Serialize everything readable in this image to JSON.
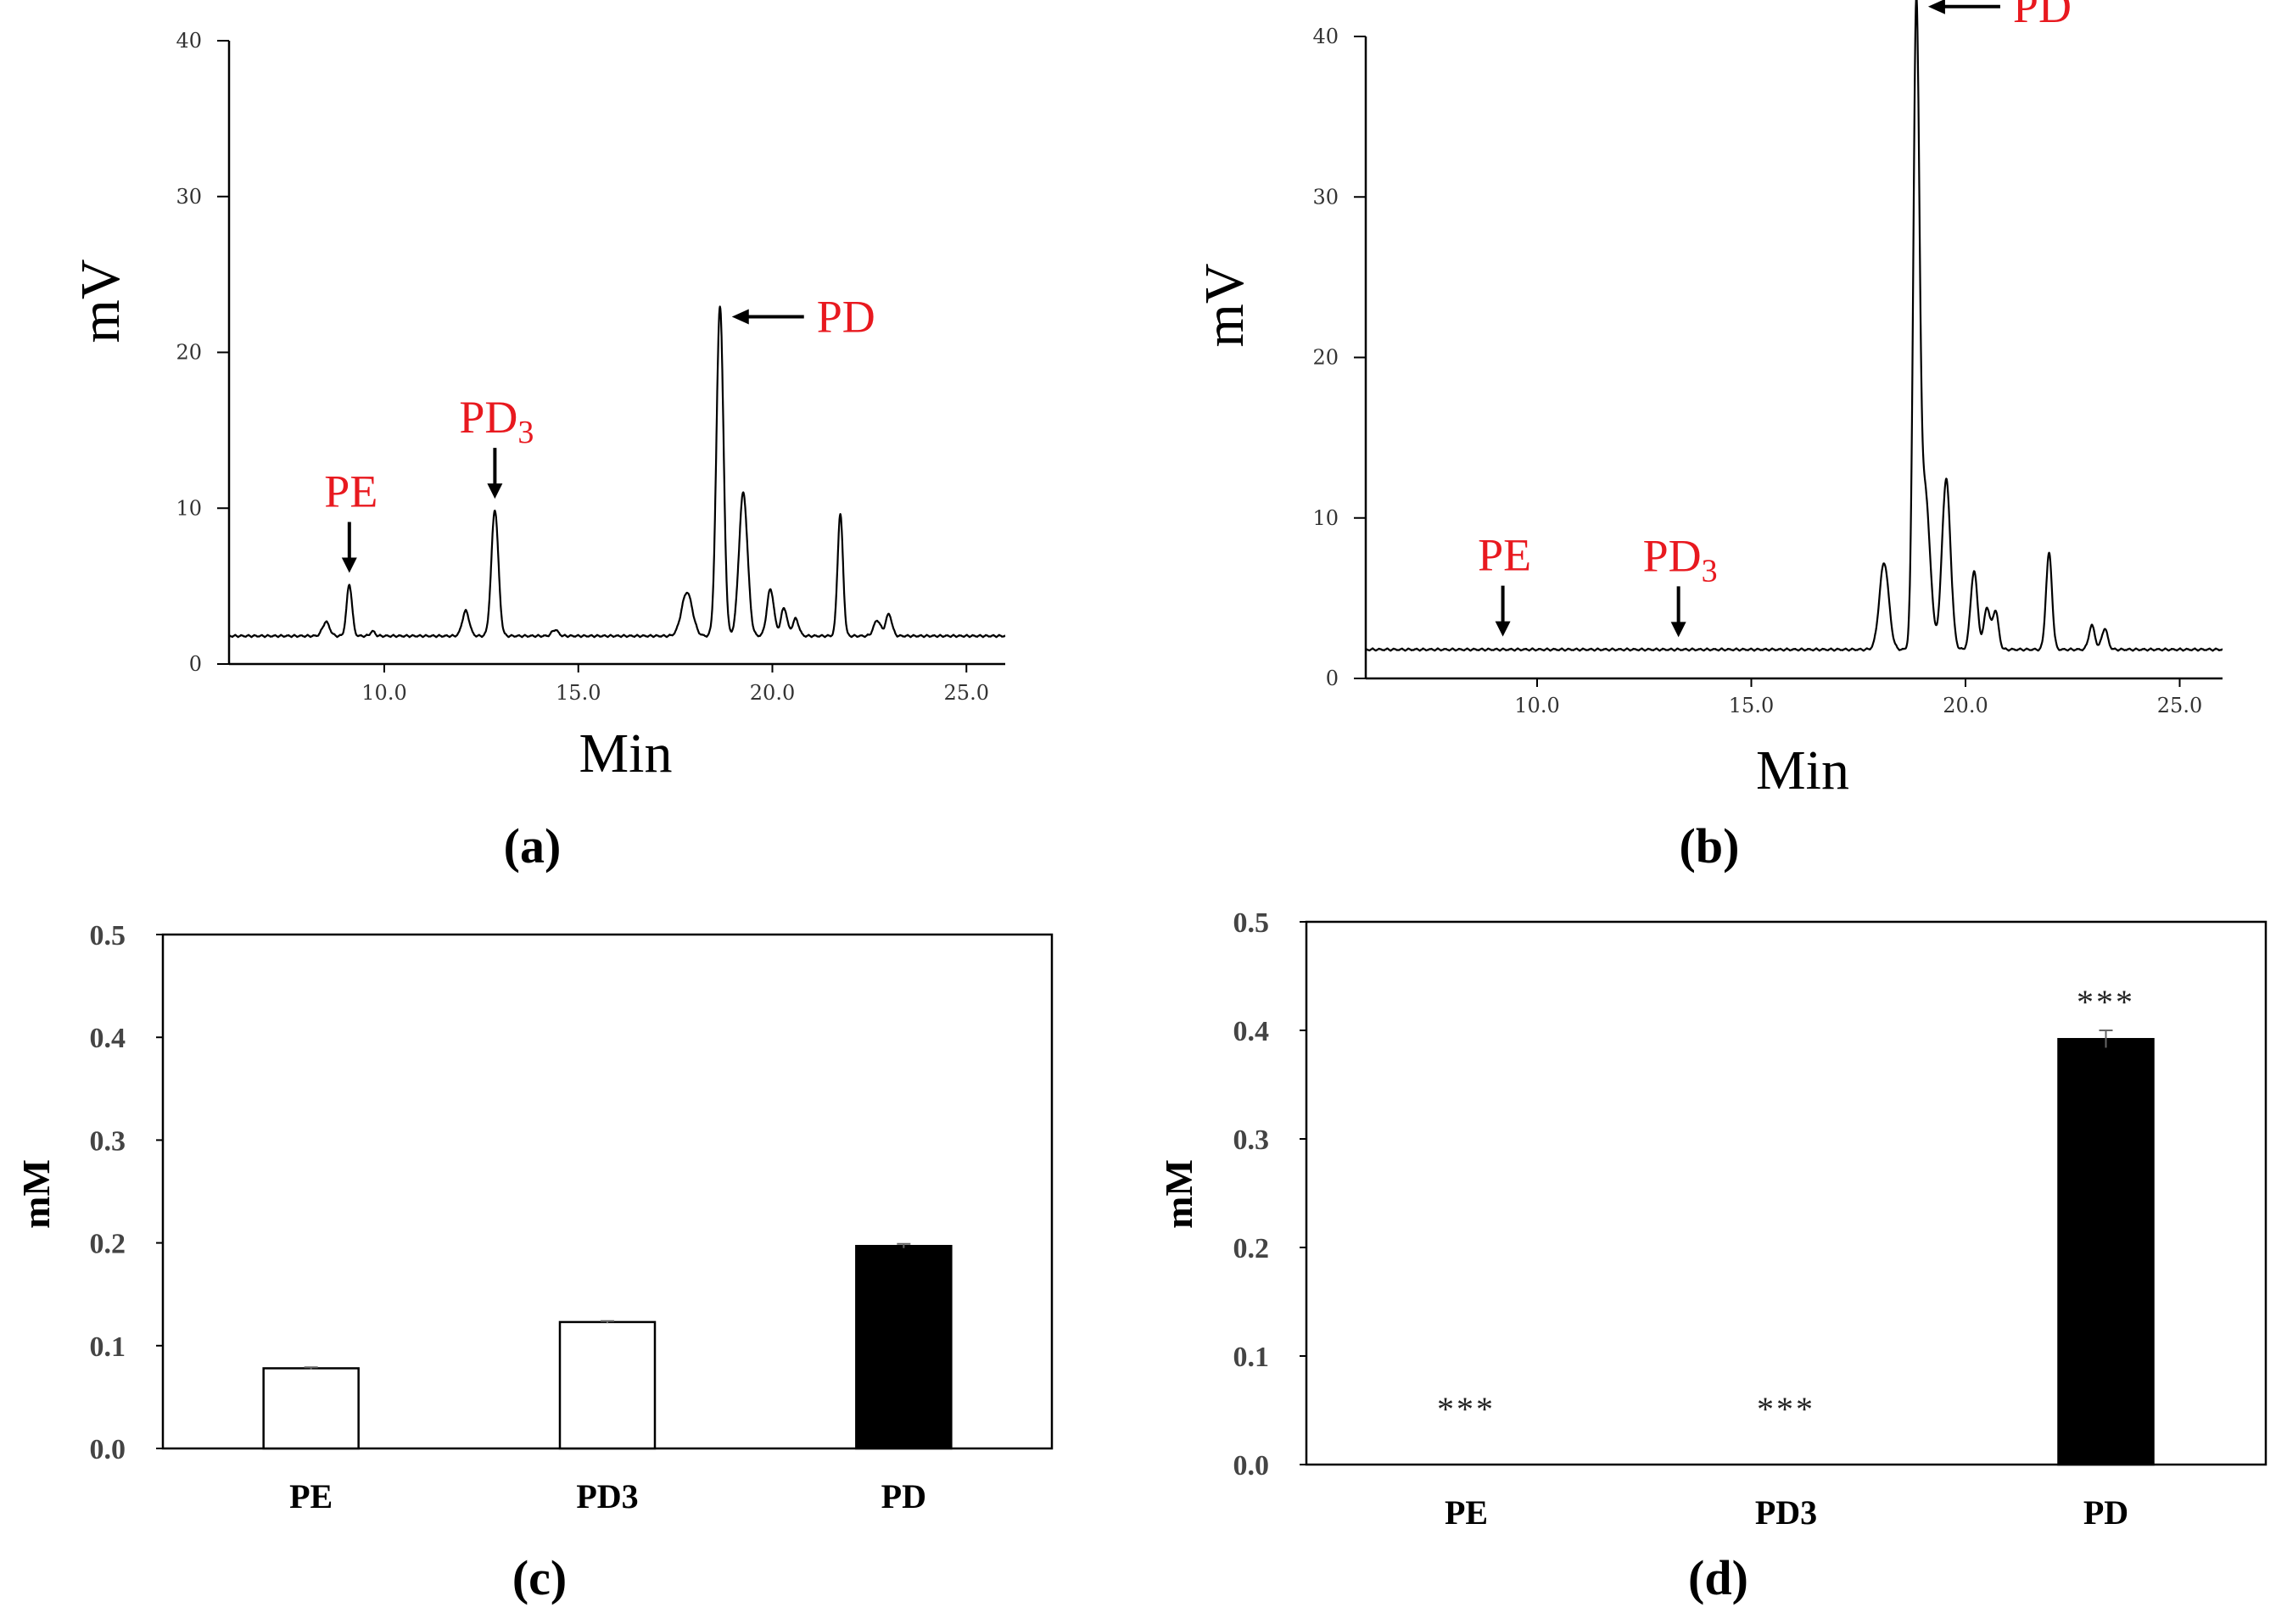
{
  "colors": {
    "peak_label": "#e8191f",
    "axis": "#000000",
    "bar_open": "#ffffff",
    "bar_filled": "#000000"
  },
  "chart_data": [
    {
      "panel": "(a)",
      "type": "line",
      "title": "",
      "xlabel": "Min",
      "ylabel": "mV",
      "xlim": [
        6.0,
        26.0
      ],
      "ylim": [
        0,
        40
      ],
      "xticks": [
        "10.0",
        "15.0",
        "20.0",
        "25.0"
      ],
      "yticks": [
        "0",
        "10",
        "20",
        "30",
        "40"
      ],
      "baseline": 1.8,
      "peaks": [
        {
          "t": 8.5,
          "h": 0.9,
          "w": 0.09
        },
        {
          "t": 9.1,
          "h": 3.3,
          "w": 0.07
        },
        {
          "t": 9.7,
          "h": 0.3,
          "w": 0.06
        },
        {
          "t": 12.1,
          "h": 1.6,
          "w": 0.09
        },
        {
          "t": 12.85,
          "h": 8.1,
          "w": 0.09
        },
        {
          "t": 14.4,
          "h": 0.4,
          "w": 0.08
        },
        {
          "t": 17.8,
          "h": 2.8,
          "w": 0.14
        },
        {
          "t": 18.65,
          "h": 21.2,
          "w": 0.09
        },
        {
          "t": 19.25,
          "h": 9.2,
          "w": 0.11
        },
        {
          "t": 19.95,
          "h": 3.0,
          "w": 0.09
        },
        {
          "t": 20.3,
          "h": 1.8,
          "w": 0.08
        },
        {
          "t": 20.6,
          "h": 1.1,
          "w": 0.08
        },
        {
          "t": 21.75,
          "h": 7.8,
          "w": 0.07
        },
        {
          "t": 22.7,
          "h": 1.0,
          "w": 0.09
        },
        {
          "t": 23.0,
          "h": 1.4,
          "w": 0.08
        }
      ],
      "annotations": [
        {
          "label": "PE",
          "t": 9.1,
          "kind": "down"
        },
        {
          "label": "PD",
          "sub": "3",
          "t": 12.85,
          "kind": "down"
        },
        {
          "label": "PD",
          "t": 18.65,
          "kind": "left"
        }
      ]
    },
    {
      "panel": "(b)",
      "type": "line",
      "title": "",
      "xlabel": "Min",
      "ylabel": "mV",
      "xlim": [
        6.0,
        26.0
      ],
      "ylim": [
        0,
        40
      ],
      "xticks": [
        "10.0",
        "15.0",
        "20.0",
        "25.0"
      ],
      "yticks": [
        "0",
        "10",
        "20",
        "30",
        "40"
      ],
      "baseline": 1.8,
      "peaks": [
        {
          "t": 18.1,
          "h": 5.4,
          "w": 0.11
        },
        {
          "t": 18.85,
          "h": 38.2,
          "w": 0.07
        },
        {
          "t": 19.05,
          "h": 10.0,
          "w": 0.12
        },
        {
          "t": 19.55,
          "h": 10.6,
          "w": 0.1
        },
        {
          "t": 20.2,
          "h": 4.9,
          "w": 0.08
        },
        {
          "t": 20.5,
          "h": 2.6,
          "w": 0.07
        },
        {
          "t": 20.7,
          "h": 2.4,
          "w": 0.07
        },
        {
          "t": 21.95,
          "h": 6.0,
          "w": 0.07
        },
        {
          "t": 22.95,
          "h": 1.5,
          "w": 0.07
        },
        {
          "t": 23.25,
          "h": 1.3,
          "w": 0.07
        }
      ],
      "annotations": [
        {
          "label": "PE",
          "t": 9.2,
          "kind": "down"
        },
        {
          "label": "PD",
          "sub": "3",
          "t": 13.3,
          "kind": "down"
        },
        {
          "label": "PD",
          "t": 18.85,
          "kind": "left"
        }
      ]
    },
    {
      "panel": "(c)",
      "type": "bar",
      "title": "",
      "xlabel": "",
      "ylabel": "mM",
      "ylim": [
        0,
        0.5
      ],
      "yticks": [
        "0.0",
        "0.1",
        "0.2",
        "0.3",
        "0.4",
        "0.5"
      ],
      "categories": [
        "PE",
        "PD3",
        "PD"
      ],
      "values": [
        0.078,
        0.123,
        0.197
      ],
      "errors": [
        0.001,
        0.001,
        0.002
      ],
      "fills": [
        "open",
        "open",
        "filled"
      ],
      "significance": [
        "",
        "",
        ""
      ]
    },
    {
      "panel": "(d)",
      "type": "bar",
      "title": "",
      "xlabel": "",
      "ylabel": "mM",
      "ylim": [
        0,
        0.5
      ],
      "yticks": [
        "0.0",
        "0.1",
        "0.2",
        "0.3",
        "0.4",
        "0.5"
      ],
      "categories": [
        "PE",
        "PD3",
        "PD"
      ],
      "values": [
        0,
        0,
        0.392
      ],
      "errors": [
        0,
        0,
        0.008
      ],
      "fills": [
        "open",
        "open",
        "filled"
      ],
      "significance": [
        "***",
        "***",
        "***"
      ]
    }
  ]
}
